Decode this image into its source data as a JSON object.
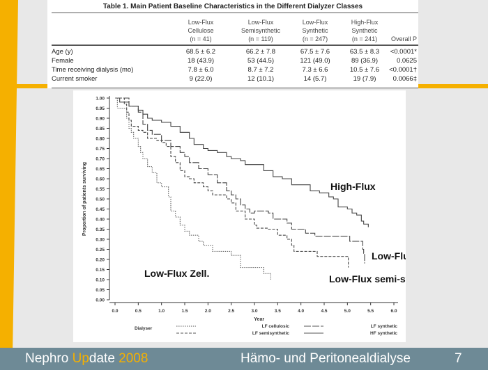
{
  "table": {
    "title": "Table 1.  Main Patient Baseline Characteristics in the Different Dialyzer Classes",
    "columns": [
      {
        "l1": "Low-Flux",
        "l2": "Cellulose",
        "l3": "(n = 41)"
      },
      {
        "l1": "Low-Flux",
        "l2": "Semisynthetic",
        "l3": "(n = 119)"
      },
      {
        "l1": "Low-Flux",
        "l2": "Synthetic",
        "l3": "(n = 247)"
      },
      {
        "l1": "High-Flux",
        "l2": "Synthetic",
        "l3": "(n = 241)"
      },
      {
        "l1": "",
        "l2": "",
        "l3": "Overall P"
      }
    ],
    "rows": [
      {
        "label": "Age (y)",
        "v": [
          "68.5 ± 6.2",
          "66.2 ± 7.8",
          "67.5 ± 7.6",
          "63.5 ± 8.3",
          "<0.0001*"
        ]
      },
      {
        "label": "Female",
        "v": [
          "18 (43.9)",
          "53 (44.5)",
          "121 (49.0)",
          "89 (36.9)",
          "0.0625"
        ]
      },
      {
        "label": "Time receiving dialysis (mo)",
        "v": [
          "7.8 ± 6.0",
          "8.7 ± 7.2",
          "7.3 ± 6.6",
          "10.5 ± 7.6",
          "<0.0001†"
        ]
      },
      {
        "label": "Current smoker",
        "v": [
          "9 (22.0)",
          "12 (10.1)",
          "14 (5.7)",
          "19 (7.9)",
          "0.0066‡"
        ]
      }
    ]
  },
  "chart_data": {
    "type": "line",
    "xlabel": "Year",
    "ylabel": "Proportion of patients surviving",
    "xlim": [
      0,
      6
    ],
    "ylim": [
      0,
      1
    ],
    "xticks": [
      "0.0",
      "0.5",
      "1.0",
      "1.5",
      "2.0",
      "2.5",
      "3.0",
      "3.5",
      "4.0",
      "4.5",
      "5.0",
      "5.5",
      "6.0"
    ],
    "yticks": [
      "0.00",
      "0.05",
      "0.10",
      "0.15",
      "0.20",
      "0.25",
      "0.30",
      "0.35",
      "0.40",
      "0.45",
      "0.50",
      "0.55",
      "0.60",
      "0.65",
      "0.70",
      "0.75",
      "0.80",
      "0.85",
      "0.90",
      "0.95",
      "1.00"
    ],
    "legend_title": "Dialyser",
    "series": [
      {
        "name": "HF synthetic",
        "style": "solid",
        "points": [
          [
            0,
            1
          ],
          [
            0.1,
            0.98
          ],
          [
            0.3,
            0.96
          ],
          [
            0.45,
            0.96
          ],
          [
            0.5,
            0.94
          ],
          [
            0.6,
            0.92
          ],
          [
            0.7,
            0.9
          ],
          [
            0.8,
            0.89
          ],
          [
            1.0,
            0.88
          ],
          [
            1.2,
            0.86
          ],
          [
            1.4,
            0.83
          ],
          [
            1.6,
            0.8
          ],
          [
            1.7,
            0.77
          ],
          [
            1.9,
            0.75
          ],
          [
            2.0,
            0.74
          ],
          [
            2.2,
            0.73
          ],
          [
            2.4,
            0.71
          ],
          [
            2.5,
            0.7
          ],
          [
            2.7,
            0.69
          ],
          [
            2.8,
            0.67
          ],
          [
            3.0,
            0.67
          ],
          [
            3.2,
            0.64
          ],
          [
            3.4,
            0.61
          ],
          [
            3.6,
            0.6
          ],
          [
            3.8,
            0.57
          ],
          [
            4.0,
            0.57
          ],
          [
            4.2,
            0.54
          ],
          [
            4.4,
            0.53
          ],
          [
            4.6,
            0.51
          ],
          [
            4.7,
            0.5
          ],
          [
            4.8,
            0.46
          ],
          [
            5.0,
            0.45
          ],
          [
            5.1,
            0.43
          ],
          [
            5.2,
            0.42
          ],
          [
            5.3,
            0.39
          ],
          [
            5.35,
            0.375
          ],
          [
            5.45,
            0.36
          ]
        ]
      },
      {
        "name": "LF synthetic",
        "style": "longdash",
        "points": [
          [
            0,
            1
          ],
          [
            0.3,
            0.96
          ],
          [
            0.5,
            0.93
          ],
          [
            0.6,
            0.87
          ],
          [
            0.7,
            0.84
          ],
          [
            0.8,
            0.82
          ],
          [
            1.0,
            0.79
          ],
          [
            1.2,
            0.76
          ],
          [
            1.4,
            0.73
          ],
          [
            1.5,
            0.71
          ],
          [
            1.6,
            0.68
          ],
          [
            1.8,
            0.65
          ],
          [
            2.0,
            0.62
          ],
          [
            2.2,
            0.58
          ],
          [
            2.4,
            0.54
          ],
          [
            2.5,
            0.52
          ],
          [
            2.6,
            0.5
          ],
          [
            2.7,
            0.47
          ],
          [
            2.8,
            0.45
          ],
          [
            2.9,
            0.43
          ],
          [
            3.0,
            0.44
          ],
          [
            3.3,
            0.43
          ],
          [
            3.4,
            0.4
          ],
          [
            3.7,
            0.38
          ],
          [
            3.8,
            0.35
          ],
          [
            4.0,
            0.35
          ],
          [
            4.1,
            0.33
          ],
          [
            4.3,
            0.315
          ],
          [
            5.05,
            0.29
          ],
          [
            5.3,
            0.29
          ],
          [
            5.33,
            0.25
          ],
          [
            5.35,
            0.23
          ],
          [
            5.37,
            0.18
          ]
        ]
      },
      {
        "name": "LF semisynthetic",
        "style": "dash",
        "points": [
          [
            0,
            1
          ],
          [
            0.2,
            0.97
          ],
          [
            0.25,
            0.93
          ],
          [
            0.3,
            0.89
          ],
          [
            0.35,
            0.86
          ],
          [
            0.5,
            0.84
          ],
          [
            0.6,
            0.83
          ],
          [
            0.7,
            0.8
          ],
          [
            0.9,
            0.79
          ],
          [
            1.0,
            0.78
          ],
          [
            1.1,
            0.76
          ],
          [
            1.2,
            0.71
          ],
          [
            1.3,
            0.68
          ],
          [
            1.4,
            0.64
          ],
          [
            1.5,
            0.61
          ],
          [
            1.6,
            0.6
          ],
          [
            1.7,
            0.58
          ],
          [
            1.9,
            0.56
          ],
          [
            2.0,
            0.54
          ],
          [
            2.1,
            0.52
          ],
          [
            2.4,
            0.5
          ],
          [
            2.5,
            0.48
          ],
          [
            2.6,
            0.44
          ],
          [
            2.8,
            0.4
          ],
          [
            3.0,
            0.37
          ],
          [
            3.05,
            0.355
          ],
          [
            3.3,
            0.35
          ],
          [
            3.5,
            0.32
          ],
          [
            3.7,
            0.3
          ],
          [
            3.8,
            0.27
          ],
          [
            3.85,
            0.24
          ],
          [
            4.2,
            0.24
          ],
          [
            4.35,
            0.215
          ],
          [
            5.0,
            0.215
          ],
          [
            5.02,
            0.16
          ]
        ]
      },
      {
        "name": "LF cellulosic",
        "style": "dot",
        "points": [
          [
            0,
            1
          ],
          [
            0.05,
            0.95
          ],
          [
            0.2,
            0.95
          ],
          [
            0.25,
            0.9
          ],
          [
            0.3,
            0.85
          ],
          [
            0.35,
            0.83
          ],
          [
            0.4,
            0.8
          ],
          [
            0.5,
            0.76
          ],
          [
            0.55,
            0.73
          ],
          [
            0.6,
            0.7
          ],
          [
            0.7,
            0.66
          ],
          [
            0.8,
            0.63
          ],
          [
            0.9,
            0.58
          ],
          [
            1.0,
            0.56
          ],
          [
            1.1,
            0.56
          ],
          [
            1.15,
            0.51
          ],
          [
            1.2,
            0.44
          ],
          [
            1.3,
            0.41
          ],
          [
            1.4,
            0.37
          ],
          [
            1.5,
            0.34
          ],
          [
            1.6,
            0.32
          ],
          [
            1.8,
            0.29
          ],
          [
            1.9,
            0.27
          ],
          [
            2.1,
            0.24
          ],
          [
            2.5,
            0.22
          ],
          [
            2.7,
            0.16
          ],
          [
            3.2,
            0.13
          ],
          [
            3.35,
            0.1
          ]
        ]
      }
    ],
    "annotations": [
      "High-Flux",
      "Low-Flux synth.",
      "Low-Flux semi-synth.",
      "Low-Flux Zell."
    ]
  },
  "footer": {
    "p1": "Nephro ",
    "p2": "Up",
    "p3": "date ",
    "p4": "2008",
    "title": "Hämo- und Peritonealdialyse",
    "page": "7"
  },
  "colors": {
    "accent": "#f5b000",
    "footer": "#6e8a96"
  }
}
